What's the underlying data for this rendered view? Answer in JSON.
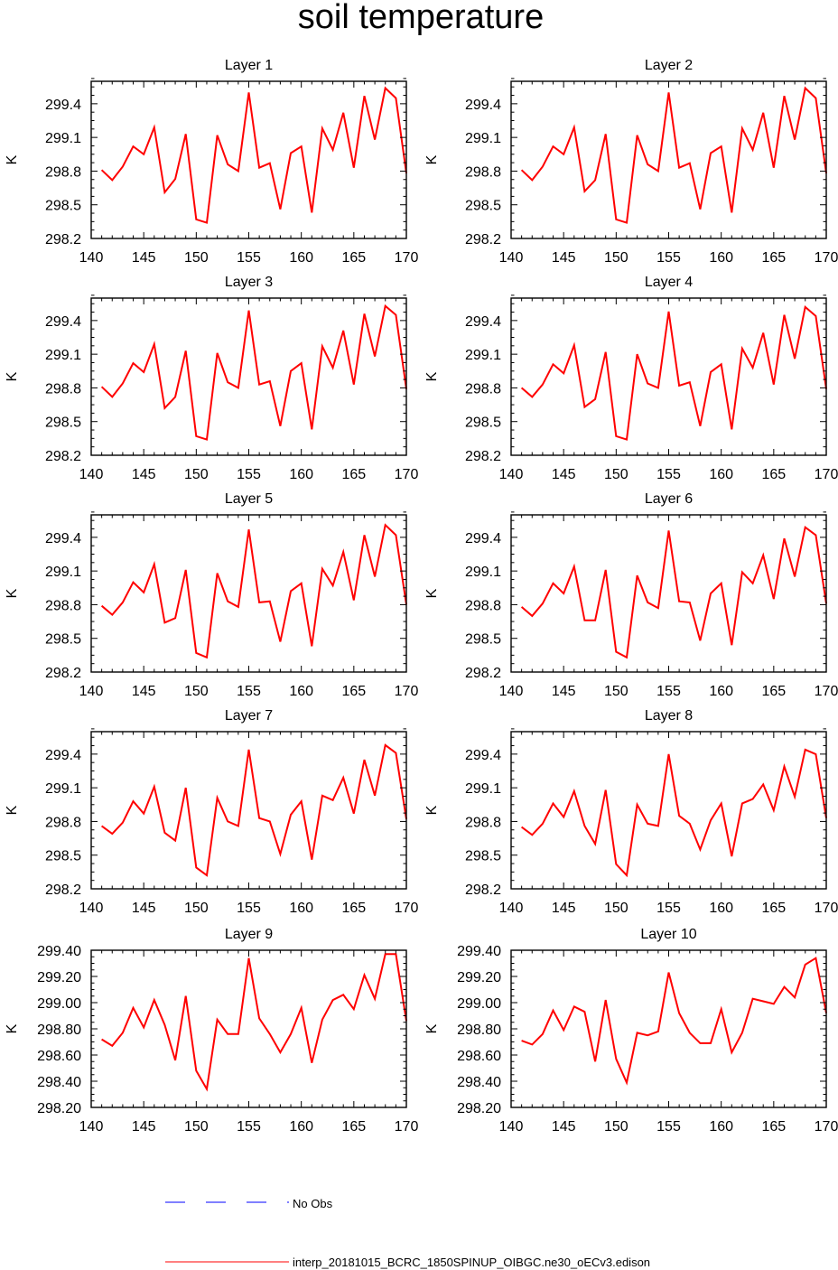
{
  "figure": {
    "title": "soil temperature",
    "colors": {
      "model": "#ff0000",
      "obs": "#0000ff",
      "axis": "#000000"
    }
  },
  "legend": {
    "obs_label": "No Obs",
    "model_label": "interp_20181015_BCRC_1850SPINUP_OIBGC.ne30_oECv3.edison"
  },
  "chart_data": [
    {
      "type": "line",
      "title": "Layer 1",
      "xlabel": "",
      "ylabel": "K",
      "xlim": [
        140,
        170
      ],
      "ylim": [
        298.2,
        299.6
      ],
      "xticks": [
        140,
        145,
        150,
        155,
        160,
        165,
        170
      ],
      "xtick_labels": [
        "140",
        "145",
        "150",
        "155",
        "160",
        "165",
        "170"
      ],
      "yticks": [
        298.2,
        298.5,
        298.8,
        299.1,
        299.4
      ],
      "ytick_labels": [
        "298.2",
        "298.5",
        "298.8",
        "299.1",
        "299.4"
      ],
      "x": [
        141,
        142,
        143,
        144,
        145,
        146,
        147,
        148,
        149,
        150,
        151,
        152,
        153,
        154,
        155,
        156,
        157,
        158,
        159,
        160,
        161,
        162,
        163,
        164,
        165,
        166,
        167,
        168,
        169,
        170
      ],
      "series": [
        {
          "values": [
            298.81,
            298.72,
            298.84,
            299.02,
            298.95,
            299.19,
            298.61,
            298.73,
            299.13,
            298.37,
            298.34,
            299.12,
            298.86,
            298.8,
            299.5,
            298.83,
            298.87,
            298.46,
            298.96,
            299.02,
            298.43,
            299.18,
            298.99,
            299.32,
            298.83,
            299.47,
            299.08,
            299.54,
            299.45,
            298.78
          ]
        }
      ]
    },
    {
      "type": "line",
      "title": "Layer 2",
      "xlabel": "",
      "ylabel": "K",
      "xlim": [
        140,
        170
      ],
      "ylim": [
        298.2,
        299.6
      ],
      "xticks": [
        140,
        145,
        150,
        155,
        160,
        165,
        170
      ],
      "xtick_labels": [
        "140",
        "145",
        "150",
        "155",
        "160",
        "165",
        "170"
      ],
      "yticks": [
        298.2,
        298.5,
        298.8,
        299.1,
        299.4
      ],
      "ytick_labels": [
        "298.2",
        "298.5",
        "298.8",
        "299.1",
        "299.4"
      ],
      "x": [
        141,
        142,
        143,
        144,
        145,
        146,
        147,
        148,
        149,
        150,
        151,
        152,
        153,
        154,
        155,
        156,
        157,
        158,
        159,
        160,
        161,
        162,
        163,
        164,
        165,
        166,
        167,
        168,
        169,
        170
      ],
      "series": [
        {
          "values": [
            298.81,
            298.72,
            298.84,
            299.02,
            298.95,
            299.19,
            298.62,
            298.72,
            299.13,
            298.37,
            298.34,
            299.12,
            298.86,
            298.8,
            299.5,
            298.83,
            298.87,
            298.46,
            298.96,
            299.02,
            298.43,
            299.18,
            298.99,
            299.32,
            298.83,
            299.47,
            299.08,
            299.54,
            299.45,
            298.78
          ]
        }
      ]
    },
    {
      "type": "line",
      "title": "Layer 3",
      "xlabel": "",
      "ylabel": "K",
      "xlim": [
        140,
        170
      ],
      "ylim": [
        298.2,
        299.6
      ],
      "xticks": [
        140,
        145,
        150,
        155,
        160,
        165,
        170
      ],
      "xtick_labels": [
        "140",
        "145",
        "150",
        "155",
        "160",
        "165",
        "170"
      ],
      "yticks": [
        298.2,
        298.5,
        298.8,
        299.1,
        299.4
      ],
      "ytick_labels": [
        "298.2",
        "298.5",
        "298.8",
        "299.1",
        "299.4"
      ],
      "x": [
        141,
        142,
        143,
        144,
        145,
        146,
        147,
        148,
        149,
        150,
        151,
        152,
        153,
        154,
        155,
        156,
        157,
        158,
        159,
        160,
        161,
        162,
        163,
        164,
        165,
        166,
        167,
        168,
        169,
        170
      ],
      "series": [
        {
          "values": [
            298.81,
            298.72,
            298.84,
            299.02,
            298.94,
            299.19,
            298.62,
            298.72,
            299.13,
            298.37,
            298.34,
            299.11,
            298.85,
            298.8,
            299.49,
            298.83,
            298.86,
            298.46,
            298.95,
            299.02,
            298.43,
            299.17,
            298.98,
            299.31,
            298.83,
            299.46,
            299.08,
            299.53,
            299.45,
            298.79
          ]
        }
      ]
    },
    {
      "type": "line",
      "title": "Layer 4",
      "xlabel": "",
      "ylabel": "K",
      "xlim": [
        140,
        170
      ],
      "ylim": [
        298.2,
        299.6
      ],
      "xticks": [
        140,
        145,
        150,
        155,
        160,
        165,
        170
      ],
      "xtick_labels": [
        "140",
        "145",
        "150",
        "155",
        "160",
        "165",
        "170"
      ],
      "yticks": [
        298.2,
        298.5,
        298.8,
        299.1,
        299.4
      ],
      "ytick_labels": [
        "298.2",
        "298.5",
        "298.8",
        "299.1",
        "299.4"
      ],
      "x": [
        141,
        142,
        143,
        144,
        145,
        146,
        147,
        148,
        149,
        150,
        151,
        152,
        153,
        154,
        155,
        156,
        157,
        158,
        159,
        160,
        161,
        162,
        163,
        164,
        165,
        166,
        167,
        168,
        169,
        170
      ],
      "series": [
        {
          "values": [
            298.8,
            298.72,
            298.83,
            299.01,
            298.93,
            299.18,
            298.63,
            298.7,
            299.12,
            298.37,
            298.34,
            299.1,
            298.84,
            298.8,
            299.48,
            298.82,
            298.85,
            298.46,
            298.94,
            299.01,
            298.43,
            299.15,
            298.98,
            299.29,
            298.83,
            299.45,
            299.06,
            299.52,
            299.44,
            298.79
          ]
        }
      ]
    },
    {
      "type": "line",
      "title": "Layer 5",
      "xlabel": "",
      "ylabel": "K",
      "xlim": [
        140,
        170
      ],
      "ylim": [
        298.2,
        299.6
      ],
      "xticks": [
        140,
        145,
        150,
        155,
        160,
        165,
        170
      ],
      "xtick_labels": [
        "140",
        "145",
        "150",
        "155",
        "160",
        "165",
        "170"
      ],
      "yticks": [
        298.2,
        298.5,
        298.8,
        299.1,
        299.4
      ],
      "ytick_labels": [
        "298.2",
        "298.5",
        "298.8",
        "299.1",
        "299.4"
      ],
      "x": [
        141,
        142,
        143,
        144,
        145,
        146,
        147,
        148,
        149,
        150,
        151,
        152,
        153,
        154,
        155,
        156,
        157,
        158,
        159,
        160,
        161,
        162,
        163,
        164,
        165,
        166,
        167,
        168,
        169,
        170
      ],
      "series": [
        {
          "values": [
            298.79,
            298.71,
            298.82,
            299.0,
            298.91,
            299.16,
            298.64,
            298.68,
            299.11,
            298.37,
            298.33,
            299.08,
            298.83,
            298.78,
            299.47,
            298.82,
            298.83,
            298.47,
            298.92,
            298.99,
            298.43,
            299.12,
            298.97,
            299.27,
            298.84,
            299.42,
            299.05,
            299.51,
            299.42,
            298.8
          ]
        }
      ]
    },
    {
      "type": "line",
      "title": "Layer 6",
      "xlabel": "",
      "ylabel": "K",
      "xlim": [
        140,
        170
      ],
      "ylim": [
        298.2,
        299.6
      ],
      "xticks": [
        140,
        145,
        150,
        155,
        160,
        165,
        170
      ],
      "xtick_labels": [
        "140",
        "145",
        "150",
        "155",
        "160",
        "165",
        "170"
      ],
      "yticks": [
        298.2,
        298.5,
        298.8,
        299.1,
        299.4
      ],
      "ytick_labels": [
        "298.2",
        "298.5",
        "298.8",
        "299.1",
        "299.4"
      ],
      "x": [
        141,
        142,
        143,
        144,
        145,
        146,
        147,
        148,
        149,
        150,
        151,
        152,
        153,
        154,
        155,
        156,
        157,
        158,
        159,
        160,
        161,
        162,
        163,
        164,
        165,
        166,
        167,
        168,
        169,
        170
      ],
      "series": [
        {
          "values": [
            298.78,
            298.7,
            298.81,
            298.99,
            298.9,
            299.14,
            298.66,
            298.66,
            299.11,
            298.38,
            298.33,
            299.06,
            298.82,
            298.77,
            299.46,
            298.83,
            298.82,
            298.48,
            298.9,
            298.99,
            298.44,
            299.09,
            298.99,
            299.24,
            298.85,
            299.39,
            299.05,
            299.49,
            299.42,
            298.81
          ]
        }
      ]
    },
    {
      "type": "line",
      "title": "Layer 7",
      "xlabel": "",
      "ylabel": "K",
      "xlim": [
        140,
        170
      ],
      "ylim": [
        298.2,
        299.6
      ],
      "xticks": [
        140,
        145,
        150,
        155,
        160,
        165,
        170
      ],
      "xtick_labels": [
        "140",
        "145",
        "150",
        "155",
        "160",
        "165",
        "170"
      ],
      "yticks": [
        298.2,
        298.5,
        298.8,
        299.1,
        299.4
      ],
      "ytick_labels": [
        "298.2",
        "298.5",
        "298.8",
        "299.1",
        "299.4"
      ],
      "x": [
        141,
        142,
        143,
        144,
        145,
        146,
        147,
        148,
        149,
        150,
        151,
        152,
        153,
        154,
        155,
        156,
        157,
        158,
        159,
        160,
        161,
        162,
        163,
        164,
        165,
        166,
        167,
        168,
        169,
        170
      ],
      "series": [
        {
          "values": [
            298.76,
            298.69,
            298.79,
            298.98,
            298.87,
            299.11,
            298.7,
            298.63,
            299.1,
            298.39,
            298.32,
            299.01,
            298.8,
            298.76,
            299.44,
            298.83,
            298.8,
            298.51,
            298.86,
            298.98,
            298.46,
            299.03,
            298.99,
            299.19,
            298.87,
            299.35,
            299.03,
            299.48,
            299.41,
            298.82
          ]
        }
      ]
    },
    {
      "type": "line",
      "title": "Layer 8",
      "xlabel": "",
      "ylabel": "K",
      "xlim": [
        140,
        170
      ],
      "ylim": [
        298.2,
        299.6
      ],
      "xticks": [
        140,
        145,
        150,
        155,
        160,
        165,
        170
      ],
      "xtick_labels": [
        "140",
        "145",
        "150",
        "155",
        "160",
        "165",
        "170"
      ],
      "yticks": [
        298.2,
        298.5,
        298.8,
        299.1,
        299.4
      ],
      "ytick_labels": [
        "298.2",
        "298.5",
        "298.8",
        "299.1",
        "299.4"
      ],
      "x": [
        141,
        142,
        143,
        144,
        145,
        146,
        147,
        148,
        149,
        150,
        151,
        152,
        153,
        154,
        155,
        156,
        157,
        158,
        159,
        160,
        161,
        162,
        163,
        164,
        165,
        166,
        167,
        168,
        169,
        170
      ],
      "series": [
        {
          "values": [
            298.75,
            298.68,
            298.78,
            298.96,
            298.84,
            299.07,
            298.76,
            298.6,
            299.08,
            298.42,
            298.32,
            298.95,
            298.78,
            298.76,
            299.4,
            298.85,
            298.78,
            298.55,
            298.81,
            298.96,
            298.49,
            298.96,
            299.0,
            299.13,
            298.9,
            299.29,
            299.02,
            299.44,
            299.4,
            298.83
          ]
        }
      ]
    },
    {
      "type": "line",
      "title": "Layer 9",
      "xlabel": "",
      "ylabel": "K",
      "xlim": [
        140,
        170
      ],
      "ylim": [
        298.2,
        299.4
      ],
      "xticks": [
        140,
        145,
        150,
        155,
        160,
        165,
        170
      ],
      "xtick_labels": [
        "140",
        "145",
        "150",
        "155",
        "160",
        "165",
        "170"
      ],
      "yticks": [
        298.2,
        298.4,
        298.6,
        298.8,
        299.0,
        299.2,
        299.4
      ],
      "ytick_labels": [
        "298.20",
        "298.40",
        "298.60",
        "298.80",
        "299.00",
        "299.20",
        "299.40"
      ],
      "x": [
        141,
        142,
        143,
        144,
        145,
        146,
        147,
        148,
        149,
        150,
        151,
        152,
        153,
        154,
        155,
        156,
        157,
        158,
        159,
        160,
        161,
        162,
        163,
        164,
        165,
        166,
        167,
        168,
        169,
        170
      ],
      "series": [
        {
          "values": [
            298.72,
            298.67,
            298.77,
            298.96,
            298.81,
            299.02,
            298.83,
            298.56,
            299.05,
            298.48,
            298.34,
            298.87,
            298.76,
            298.76,
            299.34,
            298.88,
            298.76,
            298.62,
            298.76,
            298.96,
            298.54,
            298.87,
            299.02,
            299.06,
            298.95,
            299.21,
            299.03,
            299.37,
            299.37,
            298.86
          ]
        }
      ]
    },
    {
      "type": "line",
      "title": "Layer 10",
      "xlabel": "",
      "ylabel": "K",
      "xlim": [
        140,
        170
      ],
      "ylim": [
        298.2,
        299.4
      ],
      "xticks": [
        140,
        145,
        150,
        155,
        160,
        165,
        170
      ],
      "xtick_labels": [
        "140",
        "145",
        "150",
        "155",
        "160",
        "165",
        "170"
      ],
      "yticks": [
        298.2,
        298.4,
        298.6,
        298.8,
        299.0,
        299.2,
        299.4
      ],
      "ytick_labels": [
        "298.20",
        "298.40",
        "298.60",
        "298.80",
        "299.00",
        "299.20",
        "299.40"
      ],
      "x": [
        141,
        142,
        143,
        144,
        145,
        146,
        147,
        148,
        149,
        150,
        151,
        152,
        153,
        154,
        155,
        156,
        157,
        158,
        159,
        160,
        161,
        162,
        163,
        164,
        165,
        166,
        167,
        168,
        169,
        170
      ],
      "series": [
        {
          "values": [
            298.71,
            298.68,
            298.76,
            298.94,
            298.79,
            298.97,
            298.93,
            298.55,
            299.02,
            298.57,
            298.39,
            298.77,
            298.75,
            298.78,
            299.23,
            298.92,
            298.77,
            298.69,
            298.69,
            298.95,
            298.62,
            298.77,
            299.03,
            299.01,
            298.99,
            299.12,
            299.04,
            299.29,
            299.34,
            298.92
          ]
        }
      ]
    }
  ]
}
